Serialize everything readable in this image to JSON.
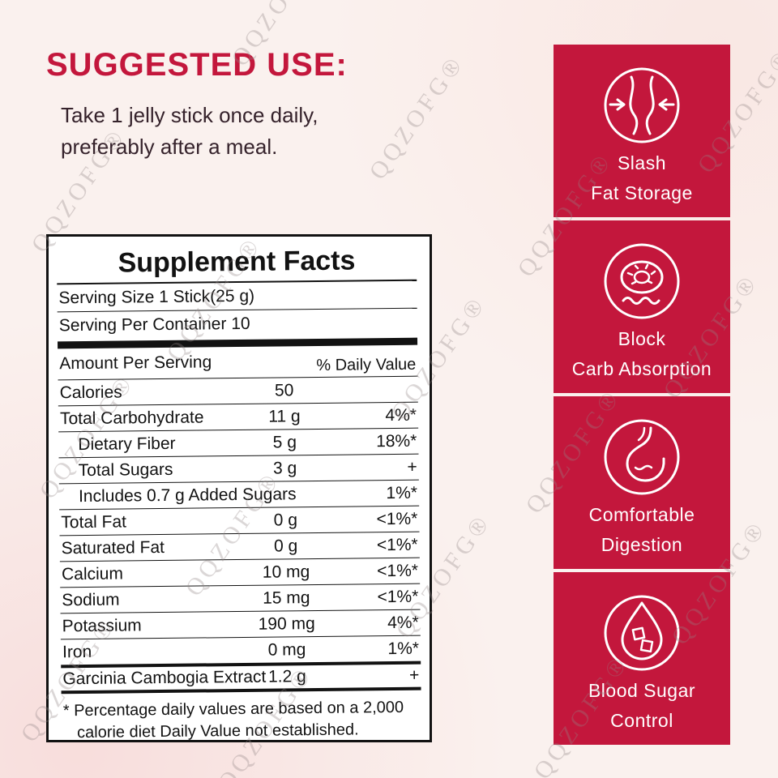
{
  "suggested_use": {
    "title": "SUGGESTED USE:",
    "line1": "Take 1 jelly stick once daily,",
    "line2": "preferably after a meal."
  },
  "supplement_facts": {
    "title": "Supplement Facts",
    "serving_size": "Serving Size 1 Stick(25 g)",
    "serving_per_container": "Serving Per Container 10",
    "header": {
      "left": "Amount Per Serving",
      "right": "% Daily Value"
    },
    "rows": [
      {
        "name": "Calories",
        "amount": "50",
        "dv": ""
      },
      {
        "name": "Total Carbohydrate",
        "amount": "11 g",
        "dv": "4%*"
      },
      {
        "name": "Dietary Fiber",
        "amount": "5 g",
        "dv": "18%*",
        "indent": true
      },
      {
        "name": "Total Sugars",
        "amount": "3 g",
        "dv": "+",
        "indent": true
      },
      {
        "name": "Includes 0.7 g Added Sugars",
        "amount": "",
        "dv": "1%*",
        "indent": true
      },
      {
        "name": "Total Fat",
        "amount": "0 g",
        "dv": "<1%*"
      },
      {
        "name": "Saturated Fat",
        "amount": "0 g",
        "dv": "<1%*"
      },
      {
        "name": "Calcium",
        "amount": "10 mg",
        "dv": "<1%*"
      },
      {
        "name": "Sodium",
        "amount": "15 mg",
        "dv": "<1%*"
      },
      {
        "name": "Potassium",
        "amount": "190 mg",
        "dv": "4%*"
      },
      {
        "name": "Iron",
        "amount": "0 mg",
        "dv": "1%*"
      },
      {
        "name": "Garcinia Cambogia Extract",
        "amount": "1.2 g",
        "dv": "+",
        "thick_top": true
      }
    ],
    "footnote_line1": "* Percentage daily values are based on a 2,000",
    "footnote_line2": "calorie diet Daily Value not established."
  },
  "benefits": [
    {
      "icon": "slim-waist-icon",
      "line1": "Slash",
      "line2": "Fat Storage"
    },
    {
      "icon": "donut-icon",
      "line1": "Block",
      "line2": "Carb Absorption"
    },
    {
      "icon": "stomach-icon",
      "line1": "Comfortable",
      "line2": "Digestion"
    },
    {
      "icon": "blood-drop-icon",
      "line1": "Blood Sugar",
      "line2": "Control"
    }
  ],
  "watermark": {
    "text": "QQZOFG®"
  },
  "colors": {
    "accent_red": "#C3173C",
    "background": "#FAF1EE",
    "label_ink": "#121212",
    "text_dark": "#35222B"
  }
}
